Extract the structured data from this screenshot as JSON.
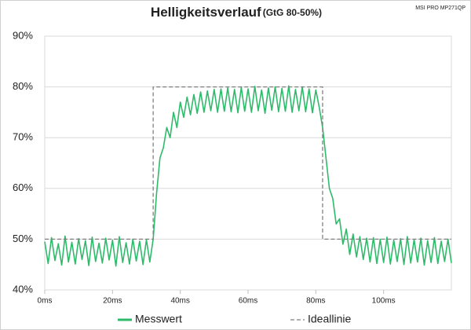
{
  "chart_data": {
    "type": "line",
    "title": "Helligkeitsverlauf",
    "subtitle": "(GtG 80-50%)",
    "annotation": "MSI PRO MP271QP",
    "xlim": [
      0,
      120
    ],
    "xticks": [
      {
        "value": 0,
        "label": "0ms"
      },
      {
        "value": 20,
        "label": "20ms"
      },
      {
        "value": 40,
        "label": "40ms"
      },
      {
        "value": 60,
        "label": "60ms"
      },
      {
        "value": 80,
        "label": "80ms"
      },
      {
        "value": 100,
        "label": "100ms"
      }
    ],
    "ylim": [
      40,
      90
    ],
    "yticks": [
      {
        "value": 40,
        "label": "40%"
      },
      {
        "value": 50,
        "label": "50%"
      },
      {
        "value": 60,
        "label": "60%"
      },
      {
        "value": 70,
        "label": "70%"
      },
      {
        "value": 80,
        "label": "80%"
      },
      {
        "value": 90,
        "label": "90%"
      }
    ],
    "grid": true,
    "legend": "bottom",
    "series": [
      {
        "name": "Messwert",
        "color": "#2dbb6a",
        "dash": false,
        "x": [
          0,
          1,
          2,
          3,
          4,
          5,
          6,
          7,
          8,
          9,
          10,
          11,
          12,
          13,
          14,
          15,
          16,
          17,
          18,
          19,
          20,
          21,
          22,
          23,
          24,
          25,
          26,
          27,
          28,
          29,
          30,
          31,
          32,
          33,
          34,
          35,
          36,
          37,
          38,
          39,
          40,
          41,
          42,
          43,
          44,
          45,
          46,
          47,
          48,
          49,
          50,
          51,
          52,
          53,
          54,
          55,
          56,
          57,
          58,
          59,
          60,
          61,
          62,
          63,
          64,
          65,
          66,
          67,
          68,
          69,
          70,
          71,
          72,
          73,
          74,
          75,
          76,
          77,
          78,
          79,
          80,
          81,
          82,
          83,
          84,
          85,
          86,
          87,
          88,
          89,
          90,
          91,
          92,
          93,
          94,
          95,
          96,
          97,
          98,
          99,
          100,
          101,
          102,
          103,
          104,
          105,
          106,
          107,
          108,
          109,
          110,
          111,
          112,
          113,
          114,
          115,
          116,
          117,
          118,
          119,
          120
        ],
        "values": [
          49.5,
          45.2,
          50.3,
          45.8,
          49.1,
          44.9,
          50.6,
          45.5,
          49.4,
          45.1,
          50.1,
          46,
          49.7,
          44.8,
          50.4,
          45.6,
          49.2,
          45.3,
          50.2,
          45.9,
          49.8,
          44.7,
          50.5,
          45.4,
          49.3,
          45.1,
          50,
          45.7,
          49.6,
          45,
          49.9,
          45.5,
          50,
          59,
          66,
          68,
          72,
          70,
          75,
          72,
          77,
          74,
          78,
          74.5,
          78.5,
          74.8,
          79,
          75,
          79.2,
          75.3,
          79.5,
          75,
          79.6,
          75.2,
          79.8,
          75.1,
          79.5,
          74.9,
          79.9,
          75.2,
          79.6,
          75,
          80.1,
          75.3,
          79.4,
          74.8,
          79.8,
          75.4,
          80,
          75.1,
          79.7,
          75.2,
          80.2,
          75,
          79.5,
          75.3,
          80,
          75.1,
          79.6,
          74.9,
          79.4,
          76,
          72,
          66,
          60,
          58,
          53,
          54,
          49,
          52,
          47,
          51,
          46.5,
          50.5,
          46,
          50.2,
          45.5,
          50.3,
          45.2,
          50,
          45.4,
          50.4,
          45.1,
          49.8,
          45.6,
          50.1,
          45,
          50.5,
          45.3,
          49.9,
          45.5,
          50.2,
          44.9,
          49.7,
          45.4,
          50.3,
          45.2,
          49.6,
          45.6,
          50,
          45.3
        ]
      },
      {
        "name": "Ideallinie",
        "color": "#808080",
        "dash": true,
        "x": [
          0,
          32,
          32,
          82,
          82,
          120
        ],
        "values": [
          50,
          50,
          80,
          80,
          50,
          50
        ]
      }
    ]
  }
}
